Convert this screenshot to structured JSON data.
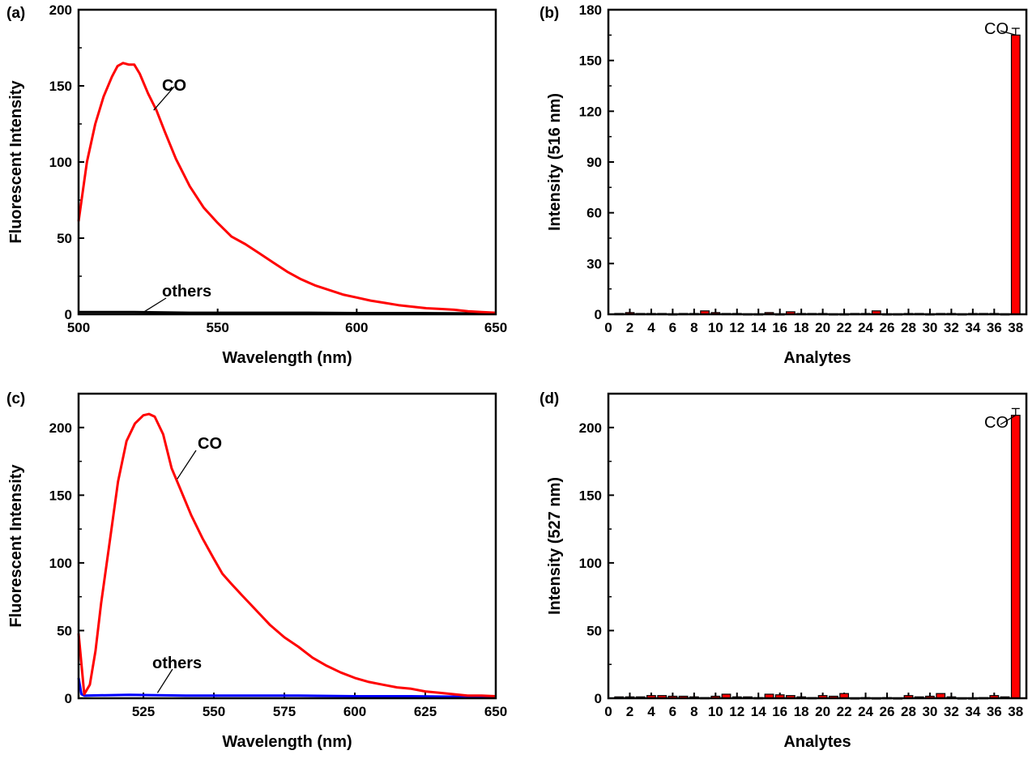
{
  "chart_data": [
    {
      "panel": "(a)",
      "type": "line",
      "xlabel": "Wavelength (nm)",
      "ylabel": "Fluorescent Intensity",
      "xlim": [
        500,
        650
      ],
      "ylim": [
        0,
        200
      ],
      "xticks": [
        500,
        550,
        600,
        650
      ],
      "yticks": [
        0,
        50,
        100,
        150,
        200
      ],
      "series": [
        {
          "name": "CO",
          "color": "#ff0000",
          "x": [
            500,
            503,
            506,
            509,
            512,
            514,
            516,
            518,
            520,
            522,
            525,
            528,
            531,
            535,
            540,
            545,
            550,
            555,
            560,
            565,
            570,
            575,
            580,
            585,
            590,
            595,
            600,
            605,
            610,
            615,
            620,
            625,
            630,
            635,
            640,
            645,
            650
          ],
          "y": [
            61,
            100,
            125,
            143,
            156,
            163,
            165,
            164,
            164,
            158,
            145,
            134,
            120,
            102,
            84,
            70,
            60,
            51,
            46,
            40,
            34,
            28,
            23,
            19,
            16,
            13,
            11,
            9,
            7.5,
            6,
            5,
            4,
            3.5,
            3,
            2,
            1.5,
            1
          ]
        },
        {
          "name": "others",
          "color": "#000000",
          "x": [
            500,
            520,
            540,
            560,
            580,
            600,
            620,
            640,
            650
          ],
          "y": [
            1.5,
            1.5,
            1,
            1,
            1,
            0.8,
            0.8,
            0.6,
            0.5
          ]
        }
      ],
      "annotations": [
        {
          "text": "CO",
          "x": 527,
          "y": 134
        },
        {
          "text": "others",
          "x": 523,
          "y": 1
        }
      ]
    },
    {
      "panel": "(b)",
      "type": "bar",
      "xlabel": "Analytes",
      "ylabel": "Intensity (516 nm)",
      "xlim": [
        0,
        39
      ],
      "ylim": [
        0,
        180
      ],
      "xticks": [
        0,
        2,
        4,
        6,
        8,
        10,
        12,
        14,
        16,
        18,
        20,
        22,
        24,
        26,
        28,
        30,
        32,
        34,
        36,
        38
      ],
      "yticks": [
        0,
        30,
        60,
        90,
        120,
        150,
        180
      ],
      "bar_color": "#ff0000",
      "categories": [
        1,
        2,
        3,
        4,
        5,
        6,
        7,
        8,
        9,
        10,
        11,
        12,
        13,
        14,
        15,
        16,
        17,
        18,
        19,
        20,
        21,
        22,
        23,
        24,
        25,
        26,
        27,
        28,
        29,
        30,
        31,
        32,
        33,
        34,
        35,
        36,
        37,
        38
      ],
      "values": [
        0.5,
        1,
        0.5,
        0.5,
        0.5,
        0.3,
        0.5,
        0.5,
        2,
        1,
        0.5,
        0.5,
        0.3,
        0.3,
        1,
        0.3,
        1.5,
        0.5,
        0.5,
        0.5,
        0.3,
        0.3,
        0.5,
        0.5,
        2,
        0.3,
        0.3,
        0.5,
        0.5,
        0.3,
        0.5,
        0.5,
        0.3,
        0.5,
        0.5,
        0.5,
        0.3,
        165
      ],
      "error": {
        "index": 37,
        "value": 4
      },
      "annotations": [
        {
          "text": "CO",
          "x": 38,
          "y": 165
        }
      ]
    },
    {
      "panel": "(c)",
      "type": "line",
      "xlabel": "Wavelength (nm)",
      "ylabel": "Fluorescent Intensity",
      "xlim": [
        502,
        650
      ],
      "ylim": [
        0,
        225
      ],
      "xticks": [
        525,
        550,
        575,
        600,
        625,
        650
      ],
      "yticks": [
        0,
        50,
        100,
        150,
        200
      ],
      "series": [
        {
          "name": "CO",
          "color": "#ff0000",
          "x": [
            502,
            504,
            506,
            508,
            510,
            513,
            516,
            519,
            522,
            525,
            527,
            529,
            532,
            535,
            538,
            542,
            546,
            550,
            553,
            556,
            560,
            565,
            570,
            575,
            580,
            585,
            590,
            595,
            600,
            605,
            610,
            615,
            620,
            625,
            630,
            635,
            640,
            645,
            650
          ],
          "y": [
            48,
            3,
            10,
            35,
            70,
            115,
            160,
            190,
            203,
            209,
            210,
            208,
            195,
            170,
            155,
            135,
            118,
            103,
            92,
            85,
            76,
            65,
            54,
            45,
            38,
            30,
            24,
            19,
            15,
            12,
            10,
            8,
            7,
            5,
            4,
            3,
            2,
            2,
            1.5
          ]
        },
        {
          "name": "others",
          "color": "#0000ff",
          "x": [
            502,
            503,
            504,
            520,
            540,
            560,
            580,
            600,
            620,
            640,
            650
          ],
          "y": [
            15,
            3,
            2,
            2.5,
            2,
            2,
            2,
            1.5,
            1.5,
            1,
            1
          ]
        }
      ],
      "annotations": [
        {
          "text": "CO",
          "x": 537,
          "y": 162
        },
        {
          "text": "others",
          "x": 530,
          "y": 4
        }
      ]
    },
    {
      "panel": "(d)",
      "type": "bar",
      "xlabel": "Analytes",
      "ylabel": "Intensity (527 nm)",
      "xlim": [
        0,
        39
      ],
      "ylim": [
        0,
        225
      ],
      "xticks": [
        0,
        2,
        4,
        6,
        8,
        10,
        12,
        14,
        16,
        18,
        20,
        22,
        24,
        26,
        28,
        30,
        32,
        34,
        36,
        38
      ],
      "yticks": [
        0,
        50,
        100,
        150,
        200
      ],
      "bar_color": "#ff0000",
      "categories": [
        1,
        2,
        3,
        4,
        5,
        6,
        7,
        8,
        9,
        10,
        11,
        12,
        13,
        14,
        15,
        16,
        17,
        18,
        19,
        20,
        21,
        22,
        23,
        24,
        25,
        26,
        27,
        28,
        29,
        30,
        31,
        32,
        33,
        34,
        35,
        36,
        37,
        38
      ],
      "values": [
        1,
        1,
        1,
        2,
        2,
        1.5,
        1.5,
        1,
        0.5,
        1.5,
        3,
        1,
        1,
        0.5,
        3,
        2.5,
        2,
        1,
        0.5,
        2,
        1.5,
        3.5,
        0.3,
        0.5,
        0.3,
        0.5,
        0.3,
        2,
        1,
        1.5,
        3.5,
        1,
        0.3,
        0.3,
        0.5,
        2,
        1,
        209
      ],
      "error": {
        "index": 37,
        "value": 5
      },
      "annotations": [
        {
          "text": "CO",
          "x": 38,
          "y": 209
        }
      ]
    }
  ]
}
